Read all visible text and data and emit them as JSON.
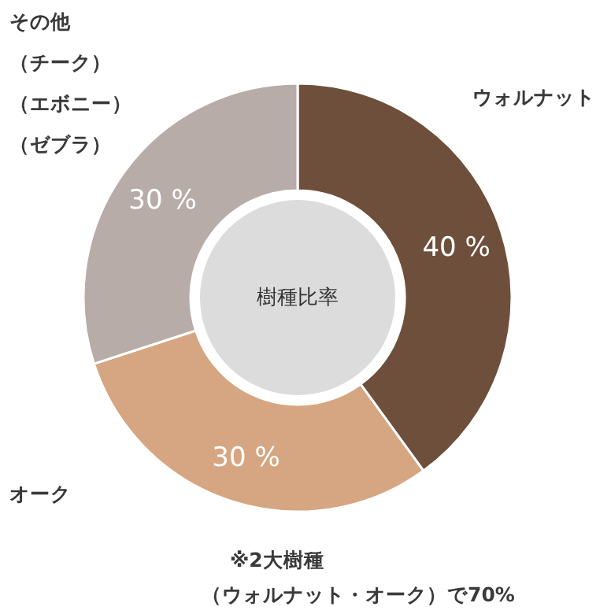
{
  "chart_data": {
    "type": "donut",
    "title": "樹種比率",
    "categories": [
      "ウォルナット",
      "オーク",
      "その他（チーク）（エボニー）（ゼブラ）"
    ],
    "values": [
      40,
      30,
      30
    ],
    "colors": [
      "#6e4f3b",
      "#d5a681",
      "#b7aca7"
    ],
    "value_labels": [
      "40 %",
      "30 %",
      "30 %"
    ],
    "annotations": [
      "※2大樹種（ウォルナット・オーク）で70%"
    ]
  }
}
